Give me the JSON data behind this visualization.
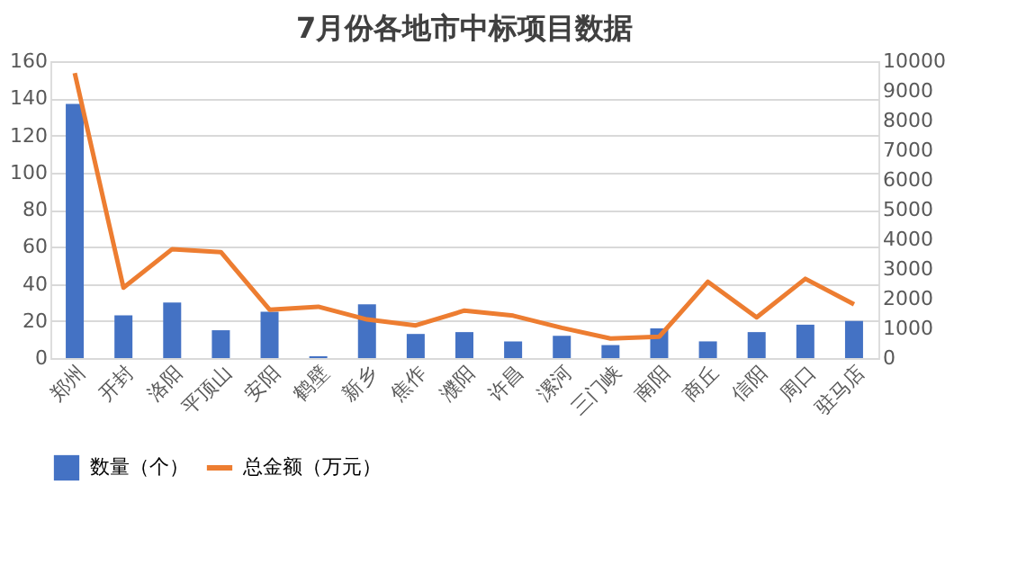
{
  "chart_data": {
    "type": "bar",
    "title": "7月份各地市中标项目数据",
    "categories": [
      "郑州",
      "开封",
      "洛阳",
      "平顶山",
      "安阳",
      "鹤壁",
      "新乡",
      "焦作",
      "濮阳",
      "许昌",
      "漯河",
      "三门峡",
      "南阳",
      "商丘",
      "信阳",
      "周口",
      "驻马店"
    ],
    "series": [
      {
        "name": "数量（个）",
        "color": "#4472c4",
        "values": [
          137,
          23,
          30,
          15,
          25,
          1,
          29,
          13,
          14,
          9,
          12,
          7,
          16,
          9,
          14,
          18,
          20
        ]
      },
      {
        "name": "总金额（万元）",
        "type": "line",
        "axis": "y2",
        "color": "#ed7d31",
        "values": [
          9600,
          2370,
          3670,
          3570,
          1630,
          1730,
          1300,
          1100,
          1600,
          1430,
          1020,
          660,
          720,
          2570,
          1370,
          2670,
          1810
        ]
      }
    ],
    "ylim": [
      0,
      160
    ],
    "yticks": [
      0,
      20,
      40,
      60,
      80,
      100,
      120,
      140,
      160
    ],
    "y2lim": [
      0,
      10000
    ],
    "y2ticks": [
      0,
      1000,
      2000,
      3000,
      4000,
      5000,
      6000,
      7000,
      8000,
      9000,
      10000
    ],
    "grid": "y",
    "legend": "bottom",
    "marker": "none",
    "line_style": "solid"
  }
}
